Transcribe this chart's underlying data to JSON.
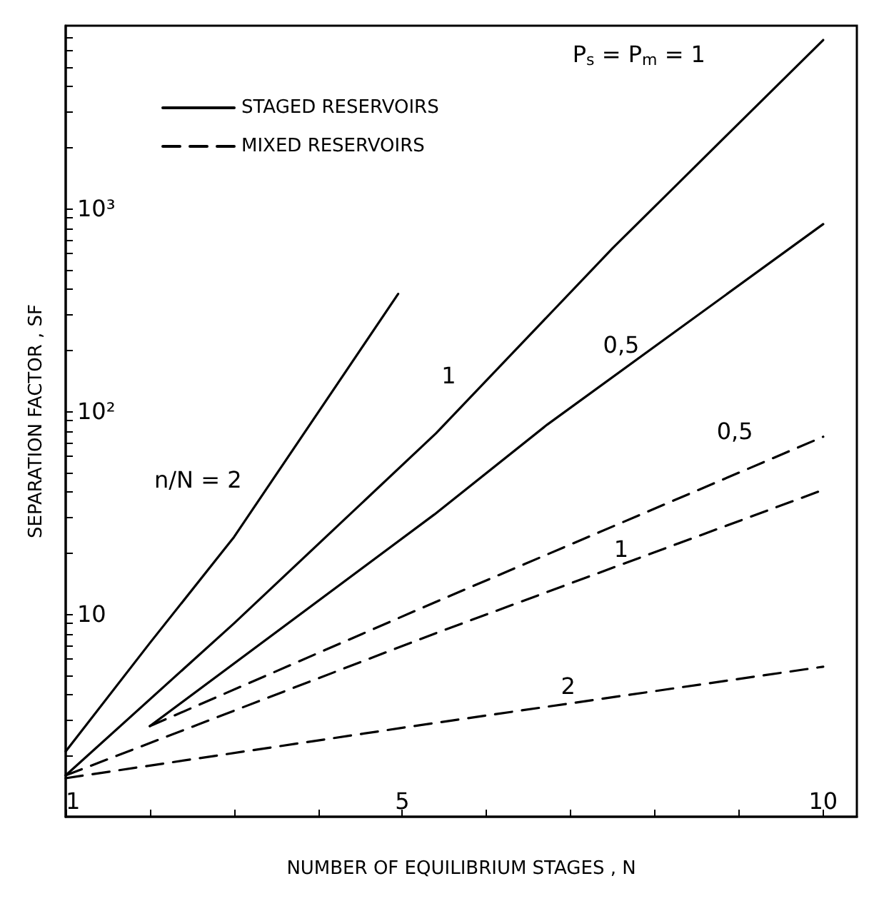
{
  "chart_data": {
    "type": "line",
    "xlabel": "NUMBER OF EQUILIBRIUM STAGES , N",
    "ylabel": "SEPARATION FACTOR , SF",
    "log": "y",
    "grid": false,
    "legend": "top left",
    "marker": "none",
    "xlim": [
      1,
      10.4
    ],
    "xticks": [
      1,
      {
        "value": 2,
        "label": null
      },
      {
        "value": 3,
        "label": null
      },
      {
        "value": 4,
        "label": null
      },
      5,
      {
        "value": 6,
        "label": null
      },
      {
        "value": 7,
        "label": null
      },
      {
        "value": 8,
        "label": null
      },
      {
        "value": 9,
        "label": null
      },
      10
    ],
    "ylim": [
      1,
      8000
    ],
    "yticks": [
      {
        "value": 2,
        "label": null
      },
      {
        "value": 3,
        "label": null
      },
      {
        "value": 4,
        "label": null
      },
      {
        "value": 5,
        "label": null
      },
      {
        "value": 6,
        "label": null
      },
      {
        "value": 7,
        "label": null
      },
      {
        "value": 8,
        "label": null
      },
      {
        "value": 9,
        "label": null
      },
      10,
      {
        "value": 20,
        "label": null
      },
      {
        "value": 30,
        "label": null
      },
      {
        "value": 40,
        "label": null
      },
      {
        "value": 50,
        "label": null
      },
      {
        "value": 60,
        "label": null
      },
      {
        "value": 70,
        "label": null
      },
      {
        "value": 80,
        "label": null
      },
      {
        "value": 90,
        "label": null
      },
      {
        "value": 100,
        "label": "10²"
      },
      {
        "value": 200,
        "label": null
      },
      {
        "value": 300,
        "label": null
      },
      {
        "value": 400,
        "label": null
      },
      {
        "value": 500,
        "label": null
      },
      {
        "value": 600,
        "label": null
      },
      {
        "value": 700,
        "label": null
      },
      {
        "value": 800,
        "label": null
      },
      {
        "value": 900,
        "label": null
      },
      {
        "value": 1000,
        "label": "10³"
      },
      {
        "value": 2000,
        "label": null
      },
      {
        "value": 3000,
        "label": null
      },
      {
        "value": 4000,
        "label": null
      },
      {
        "value": 5000,
        "label": null
      },
      {
        "value": 6000,
        "label": null
      },
      {
        "value": 7000,
        "label": null
      }
    ],
    "series": [
      {
        "name": "STAGED RESERVOIRS",
        "color": "#000000",
        "line_style": "solid",
        "x": [
          1,
          2,
          3,
          4.95
        ],
        "values": [
          2.1,
          7.2,
          24,
          380
        ]
      },
      {
        "color": "#000000",
        "line_style": "solid",
        "x": [
          1,
          3,
          5.4,
          7.5,
          10
        ],
        "values": [
          1.6,
          9,
          78,
          640,
          6800
        ]
      },
      {
        "color": "#000000",
        "line_style": "solid",
        "x": [
          2,
          5.38,
          6.72,
          10
        ],
        "values": [
          2.8,
          31,
          86,
          840
        ]
      },
      {
        "name": "MIXED RESERVOIRS",
        "color": "#000000",
        "line_style": "dashed",
        "x": [
          2,
          5.38,
          10
        ],
        "values": [
          2.8,
          11.4,
          75
        ]
      },
      {
        "color": "#000000",
        "line_style": "dashed",
        "x": [
          1,
          5.38,
          10
        ],
        "values": [
          1.6,
          8,
          41
        ]
      },
      {
        "color": "#000000",
        "line_style": "dashed",
        "x": [
          1,
          5.38,
          10
        ],
        "values": [
          1.55,
          2.9,
          5.5
        ]
      }
    ],
    "annotations": [
      "P$_{s}$ = P$_{m}$ = 1",
      "n/N = 2",
      {
        "text": "1",
        "x": 5.55,
        "y": 150
      },
      {
        "text": "0,5",
        "x": 7.6,
        "y": 213
      },
      {
        "text": "0,5",
        "x": 8.95,
        "y": 80
      },
      {
        "text": "1",
        "x": 7.6,
        "y": 21
      },
      {
        "text": "2",
        "x": 6.97,
        "y": 4.4
      }
    ]
  }
}
